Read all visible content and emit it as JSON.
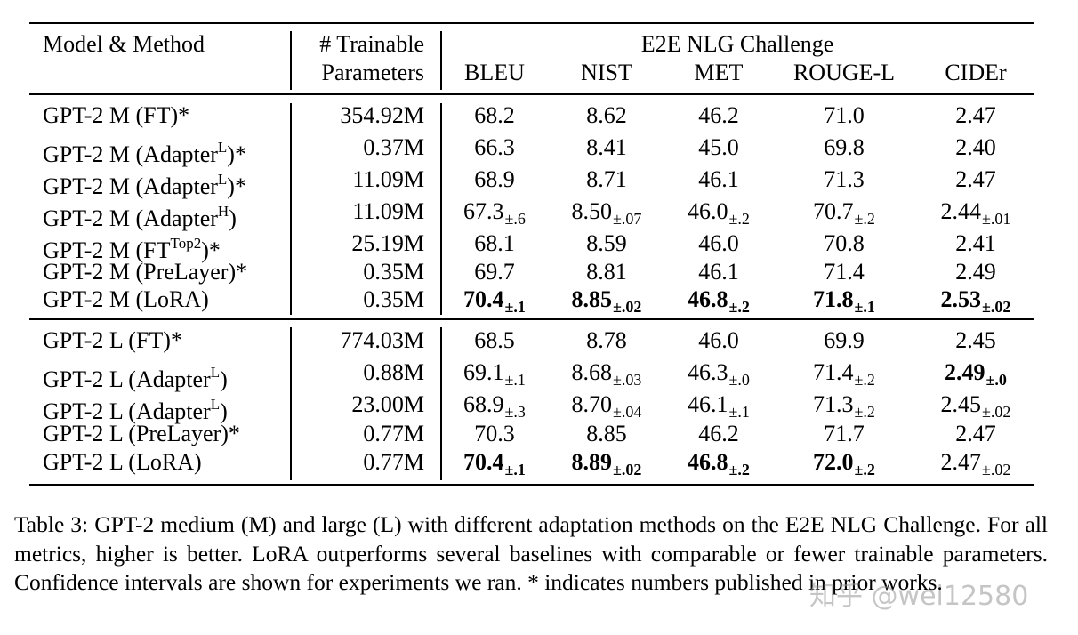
{
  "header": {
    "model_method": "Model & Method",
    "trainable_line1": "# Trainable",
    "trainable_line2": "Parameters",
    "group": "E2E NLG Challenge",
    "metrics": [
      "BLEU",
      "NIST",
      "MET",
      "ROUGE-L",
      "CIDEr"
    ]
  },
  "rows": [
    {
      "prefix": "GPT-2 M (FT)*",
      "sup": "",
      "suffix": "",
      "params": "354.92M",
      "cells": [
        {
          "v": "68.2",
          "ci": "",
          "bold": false
        },
        {
          "v": "8.62",
          "ci": "",
          "bold": false
        },
        {
          "v": "46.2",
          "ci": "",
          "bold": false
        },
        {
          "v": "71.0",
          "ci": "",
          "bold": false
        },
        {
          "v": "2.47",
          "ci": "",
          "bold": false
        }
      ]
    },
    {
      "prefix": "GPT-2 M (Adapter",
      "sup": "L",
      "suffix": ")*",
      "params": "0.37M",
      "cells": [
        {
          "v": "66.3",
          "ci": "",
          "bold": false
        },
        {
          "v": "8.41",
          "ci": "",
          "bold": false
        },
        {
          "v": "45.0",
          "ci": "",
          "bold": false
        },
        {
          "v": "69.8",
          "ci": "",
          "bold": false
        },
        {
          "v": "2.40",
          "ci": "",
          "bold": false
        }
      ]
    },
    {
      "prefix": "GPT-2 M (Adapter",
      "sup": "L",
      "suffix": ")*",
      "params": "11.09M",
      "cells": [
        {
          "v": "68.9",
          "ci": "",
          "bold": false
        },
        {
          "v": "8.71",
          "ci": "",
          "bold": false
        },
        {
          "v": "46.1",
          "ci": "",
          "bold": false
        },
        {
          "v": "71.3",
          "ci": "",
          "bold": false
        },
        {
          "v": "2.47",
          "ci": "",
          "bold": false
        }
      ]
    },
    {
      "prefix": "GPT-2 M (Adapter",
      "sup": "H",
      "suffix": ")",
      "params": "11.09M",
      "cells": [
        {
          "v": "67.3",
          "ci": "±.6",
          "bold": false
        },
        {
          "v": "8.50",
          "ci": "±.07",
          "bold": false
        },
        {
          "v": "46.0",
          "ci": "±.2",
          "bold": false
        },
        {
          "v": "70.7",
          "ci": "±.2",
          "bold": false
        },
        {
          "v": "2.44",
          "ci": "±.01",
          "bold": false
        }
      ]
    },
    {
      "prefix": "GPT-2 M (FT",
      "sup": "Top2",
      "suffix": ")*",
      "params": "25.19M",
      "cells": [
        {
          "v": "68.1",
          "ci": "",
          "bold": false
        },
        {
          "v": "8.59",
          "ci": "",
          "bold": false
        },
        {
          "v": "46.0",
          "ci": "",
          "bold": false
        },
        {
          "v": "70.8",
          "ci": "",
          "bold": false
        },
        {
          "v": "2.41",
          "ci": "",
          "bold": false
        }
      ]
    },
    {
      "prefix": "GPT-2 M (PreLayer)*",
      "sup": "",
      "suffix": "",
      "params": "0.35M",
      "cells": [
        {
          "v": "69.7",
          "ci": "",
          "bold": false
        },
        {
          "v": "8.81",
          "ci": "",
          "bold": false
        },
        {
          "v": "46.1",
          "ci": "",
          "bold": false
        },
        {
          "v": "71.4",
          "ci": "",
          "bold": false
        },
        {
          "v": "2.49",
          "ci": "",
          "bold": false
        }
      ]
    },
    {
      "prefix": "GPT-2 M (LoRA)",
      "sup": "",
      "suffix": "",
      "params": "0.35M",
      "cells": [
        {
          "v": "70.4",
          "ci": "±.1",
          "bold": true
        },
        {
          "v": "8.85",
          "ci": "±.02",
          "bold": true
        },
        {
          "v": "46.8",
          "ci": "±.2",
          "bold": true
        },
        {
          "v": "71.8",
          "ci": "±.1",
          "bold": true
        },
        {
          "v": "2.53",
          "ci": "±.02",
          "bold": true
        }
      ]
    },
    {
      "prefix": "GPT-2 L (FT)*",
      "sup": "",
      "suffix": "",
      "params": "774.03M",
      "cells": [
        {
          "v": "68.5",
          "ci": "",
          "bold": false
        },
        {
          "v": "8.78",
          "ci": "",
          "bold": false
        },
        {
          "v": "46.0",
          "ci": "",
          "bold": false
        },
        {
          "v": "69.9",
          "ci": "",
          "bold": false
        },
        {
          "v": "2.45",
          "ci": "",
          "bold": false
        }
      ]
    },
    {
      "prefix": "GPT-2 L (Adapter",
      "sup": "L",
      "suffix": ")",
      "params": "0.88M",
      "cells": [
        {
          "v": "69.1",
          "ci": "±.1",
          "bold": false
        },
        {
          "v": "8.68",
          "ci": "±.03",
          "bold": false
        },
        {
          "v": "46.3",
          "ci": "±.0",
          "bold": false
        },
        {
          "v": "71.4",
          "ci": "±.2",
          "bold": false
        },
        {
          "v": "2.49",
          "ci": "±.0",
          "bold": true
        }
      ]
    },
    {
      "prefix": "GPT-2 L (Adapter",
      "sup": "L",
      "suffix": ")",
      "params": "23.00M",
      "cells": [
        {
          "v": "68.9",
          "ci": "±.3",
          "bold": false
        },
        {
          "v": "8.70",
          "ci": "±.04",
          "bold": false
        },
        {
          "v": "46.1",
          "ci": "±.1",
          "bold": false
        },
        {
          "v": "71.3",
          "ci": "±.2",
          "bold": false
        },
        {
          "v": "2.45",
          "ci": "±.02",
          "bold": false
        }
      ]
    },
    {
      "prefix": "GPT-2 L (PreLayer)*",
      "sup": "",
      "suffix": "",
      "params": "0.77M",
      "cells": [
        {
          "v": "70.3",
          "ci": "",
          "bold": false
        },
        {
          "v": "8.85",
          "ci": "",
          "bold": false
        },
        {
          "v": "46.2",
          "ci": "",
          "bold": false
        },
        {
          "v": "71.7",
          "ci": "",
          "bold": false
        },
        {
          "v": "2.47",
          "ci": "",
          "bold": false
        }
      ]
    },
    {
      "prefix": "GPT-2 L (LoRA)",
      "sup": "",
      "suffix": "",
      "params": "0.77M",
      "cells": [
        {
          "v": "70.4",
          "ci": "±.1",
          "bold": true
        },
        {
          "v": "8.89",
          "ci": "±.02",
          "bold": true
        },
        {
          "v": "46.8",
          "ci": "±.2",
          "bold": true
        },
        {
          "v": "72.0",
          "ci": "±.2",
          "bold": true
        },
        {
          "v": "2.47",
          "ci": "±.02",
          "bold": false
        }
      ]
    }
  ],
  "caption": "Table 3: GPT-2 medium (M) and large (L) with different adaptation methods on the E2E NLG Challenge. For all metrics, higher is better. LoRA outperforms several baselines with comparable or fewer trainable parameters. Confidence intervals are shown for experiments we ran. * indicates numbers published in prior works.",
  "watermark": "知乎 @wei12580"
}
